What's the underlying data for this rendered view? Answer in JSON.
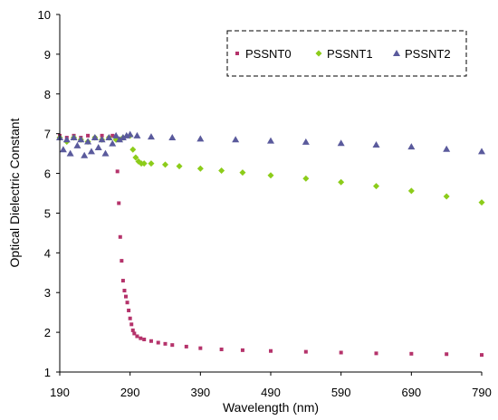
{
  "chart_data": {
    "type": "scatter",
    "title": "",
    "xlabel": "Wavelength (nm)",
    "ylabel": "Optical Dielectric Constant",
    "xlim": [
      190,
      790
    ],
    "ylim": [
      1,
      10
    ],
    "xticks": [
      190,
      290,
      390,
      490,
      590,
      690,
      790
    ],
    "yticks": [
      1,
      2,
      3,
      4,
      5,
      6,
      7,
      8,
      9,
      10
    ],
    "grid": false,
    "legend_position": "top-right",
    "series": [
      {
        "name": "PSSNT0",
        "color": "#b5336b",
        "marker": "square",
        "x": [
          190,
          200,
          210,
          220,
          230,
          240,
          250,
          260,
          265,
          270,
          272,
          274,
          276,
          278,
          280,
          282,
          284,
          286,
          288,
          290,
          292,
          294,
          296,
          300,
          305,
          310,
          320,
          330,
          340,
          350,
          370,
          390,
          420,
          450,
          490,
          540,
          590,
          640,
          690,
          740,
          790
        ],
        "y": [
          6.95,
          6.9,
          6.95,
          6.9,
          6.95,
          6.9,
          6.95,
          6.9,
          6.95,
          6.9,
          6.05,
          5.25,
          4.4,
          3.8,
          3.3,
          3.05,
          2.9,
          2.75,
          2.55,
          2.35,
          2.2,
          2.05,
          1.97,
          1.9,
          1.85,
          1.82,
          1.78,
          1.74,
          1.71,
          1.68,
          1.64,
          1.6,
          1.57,
          1.55,
          1.53,
          1.51,
          1.49,
          1.47,
          1.46,
          1.45,
          1.43
        ]
      },
      {
        "name": "PSSNT1",
        "color": "#8ccc1a",
        "marker": "diamond",
        "x": [
          190,
          200,
          210,
          220,
          230,
          240,
          250,
          260,
          270,
          280,
          290,
          294,
          298,
          302,
          306,
          310,
          320,
          340,
          360,
          390,
          420,
          450,
          490,
          540,
          590,
          640,
          690,
          740,
          790
        ],
        "y": [
          6.9,
          6.8,
          6.9,
          6.85,
          6.8,
          6.9,
          6.85,
          6.9,
          6.85,
          6.9,
          6.95,
          6.6,
          6.4,
          6.3,
          6.25,
          6.25,
          6.25,
          6.22,
          6.18,
          6.12,
          6.07,
          6.02,
          5.95,
          5.87,
          5.78,
          5.68,
          5.56,
          5.42,
          5.27
        ]
      },
      {
        "name": "PSSNT2",
        "color": "#5a5a9c",
        "marker": "triangle",
        "x": [
          190,
          195,
          200,
          205,
          210,
          215,
          220,
          225,
          230,
          235,
          240,
          245,
          250,
          255,
          260,
          265,
          270,
          275,
          280,
          285,
          290,
          300,
          320,
          350,
          390,
          440,
          490,
          540,
          590,
          640,
          690,
          740,
          790
        ],
        "y": [
          6.9,
          6.6,
          6.85,
          6.5,
          6.9,
          6.7,
          6.85,
          6.45,
          6.8,
          6.55,
          6.9,
          6.65,
          6.85,
          6.5,
          6.9,
          6.75,
          6.95,
          6.85,
          6.9,
          6.95,
          6.98,
          6.95,
          6.92,
          6.9,
          6.87,
          6.85,
          6.82,
          6.79,
          6.76,
          6.72,
          6.67,
          6.61,
          6.55
        ]
      }
    ]
  }
}
